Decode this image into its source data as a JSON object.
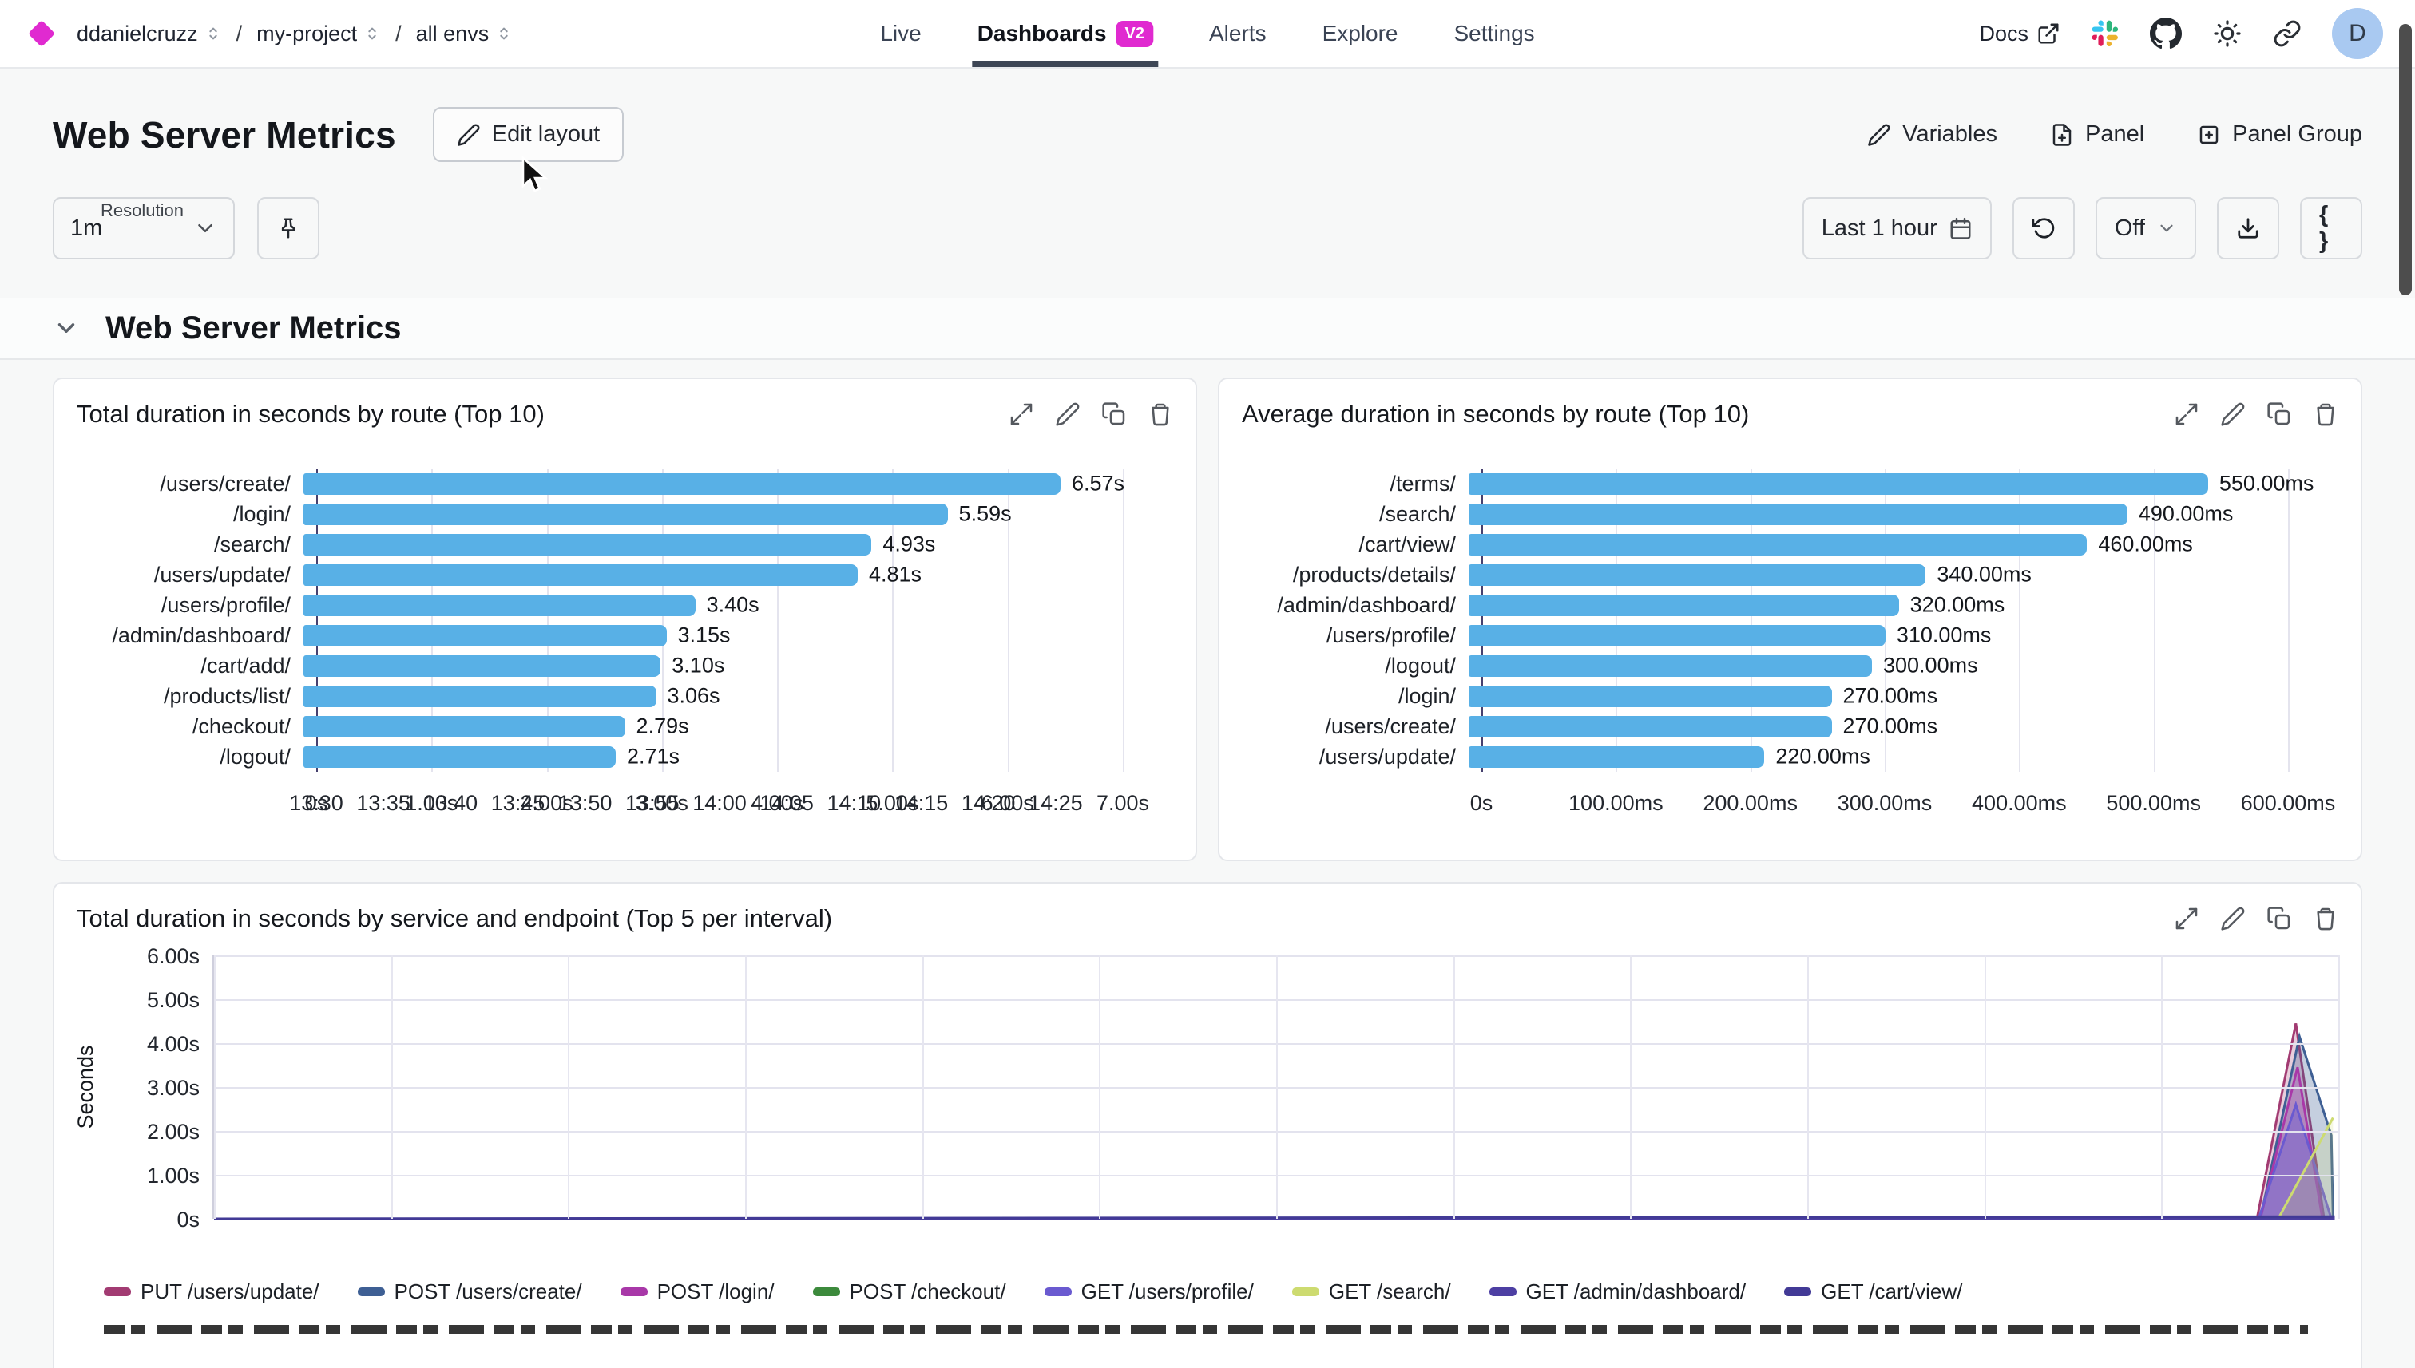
{
  "nav": {
    "breadcrumb": [
      {
        "label": "ddanielcruzz"
      },
      {
        "label": "my-project"
      },
      {
        "label": "all envs"
      }
    ],
    "tabs": [
      {
        "label": "Live",
        "active": false
      },
      {
        "label": "Dashboards",
        "active": true,
        "badge": "V2"
      },
      {
        "label": "Alerts",
        "active": false
      },
      {
        "label": "Explore",
        "active": false
      },
      {
        "label": "Settings",
        "active": false
      }
    ],
    "docs_label": "Docs",
    "avatar_letter": "D"
  },
  "header": {
    "title": "Web Server Metrics",
    "edit_layout_label": "Edit layout",
    "variables_label": "Variables",
    "panel_label": "Panel",
    "panel_group_label": "Panel Group"
  },
  "controls": {
    "resolution_label": "Resolution",
    "resolution_value": "1m",
    "time_range_label": "Last 1 hour",
    "refresh_select_value": "Off",
    "braces_label": "{ }"
  },
  "section": {
    "title": "Web Server Metrics"
  },
  "colors": {
    "accent_magenta": "#e02ad0",
    "bar_blue": "#58b0e6",
    "active_tab_underline": "#3d4655",
    "avatar_bg": "#a9c9f1"
  },
  "chart_data": [
    {
      "type": "bar",
      "orientation": "horizontal",
      "title": "Total duration in seconds by route (Top 10)",
      "categories": [
        "/users/create/",
        "/login/",
        "/search/",
        "/users/update/",
        "/users/profile/",
        "/admin/dashboard/",
        "/cart/add/",
        "/products/list/",
        "/checkout/",
        "/logout/"
      ],
      "values": [
        6.57,
        5.59,
        4.93,
        4.81,
        3.4,
        3.15,
        3.1,
        3.06,
        2.79,
        2.71
      ],
      "value_labels": [
        "6.57s",
        "5.59s",
        "4.93s",
        "4.81s",
        "3.40s",
        "3.15s",
        "3.10s",
        "3.06s",
        "2.79s",
        "2.71s"
      ],
      "x_ticks": [
        "0s",
        "1.00s",
        "2.00s",
        "3.00s",
        "4.00s",
        "5.00s",
        "6.00s",
        "7.00s"
      ],
      "xlim": [
        0,
        7
      ],
      "grid": true
    },
    {
      "type": "bar",
      "orientation": "horizontal",
      "title": "Average duration in seconds by route (Top 10)",
      "categories": [
        "/terms/",
        "/search/",
        "/cart/view/",
        "/products/details/",
        "/admin/dashboard/",
        "/users/profile/",
        "/logout/",
        "/login/",
        "/users/create/",
        "/users/update/"
      ],
      "values": [
        550,
        490,
        460,
        340,
        320,
        310,
        300,
        270,
        270,
        220
      ],
      "value_labels": [
        "550.00ms",
        "490.00ms",
        "460.00ms",
        "340.00ms",
        "320.00ms",
        "310.00ms",
        "300.00ms",
        "270.00ms",
        "270.00ms",
        "220.00ms"
      ],
      "x_ticks": [
        "0s",
        "100.00ms",
        "200.00ms",
        "300.00ms",
        "400.00ms",
        "500.00ms",
        "600.00ms"
      ],
      "xlim": [
        0,
        600
      ],
      "grid": true
    },
    {
      "type": "area",
      "title": "Total duration in seconds by service and endpoint (Top 5 per interval)",
      "ylabel": "Seconds",
      "y_ticks": [
        "0s",
        "1.00s",
        "2.00s",
        "3.00s",
        "4.00s",
        "5.00s",
        "6.00s"
      ],
      "ylim": [
        0,
        6
      ],
      "x_ticks": [
        "13:30",
        "13:35",
        "13:40",
        "13:45",
        "13:50",
        "13:55",
        "14:00",
        "14:05",
        "14:10",
        "14:15",
        "14:20",
        "14:25"
      ],
      "x_domain_minutes": [
        0,
        60
      ],
      "grid": true,
      "legend_position": "bottom",
      "series": [
        {
          "name": "PUT /users/update/",
          "color": "#a23b72",
          "fill_opacity": 0.25,
          "points": [
            [
              0,
              0
            ],
            [
              57.7,
              0
            ],
            [
              58.8,
              4.45
            ],
            [
              59.6,
              0
            ]
          ]
        },
        {
          "name": "POST /users/create/",
          "color": "#3e5f94",
          "fill_opacity": 0.3,
          "points": [
            [
              0,
              0
            ],
            [
              57.8,
              0
            ],
            [
              58.9,
              4.15
            ],
            [
              59.8,
              1.9
            ],
            [
              59.85,
              0
            ]
          ]
        },
        {
          "name": "POST /login/",
          "color": "#a838a8",
          "fill_opacity": 0.3,
          "points": [
            [
              0,
              0
            ],
            [
              57.8,
              0
            ],
            [
              58.85,
              3.45
            ],
            [
              59.55,
              0
            ]
          ]
        },
        {
          "name": "POST /checkout/",
          "color": "#3c8a3c",
          "fill_opacity": 0.3,
          "points": [
            [
              0,
              0
            ],
            [
              59.9,
              0
            ]
          ]
        },
        {
          "name": "GET /users/profile/",
          "color": "#6a5ad0",
          "fill_opacity": 0.45,
          "points": [
            [
              0,
              0
            ],
            [
              57.75,
              0
            ],
            [
              58.8,
              2.6
            ],
            [
              59.8,
              0
            ]
          ]
        },
        {
          "name": "GET /search/",
          "color": "#cddb70",
          "fill_opacity": 0.2,
          "points": [
            [
              0,
              0
            ],
            [
              58.3,
              0
            ],
            [
              59.85,
              2.3
            ]
          ]
        },
        {
          "name": "GET /admin/dashboard/",
          "color": "#4d3fa3",
          "fill_opacity": 0.3,
          "points": [
            [
              0,
              0
            ],
            [
              59.9,
              0
            ]
          ]
        },
        {
          "name": "GET /cart/view/",
          "color": "#423a96",
          "fill_opacity": 0.3,
          "points": [
            [
              0,
              0
            ],
            [
              59.9,
              0.05
            ]
          ]
        }
      ]
    }
  ]
}
